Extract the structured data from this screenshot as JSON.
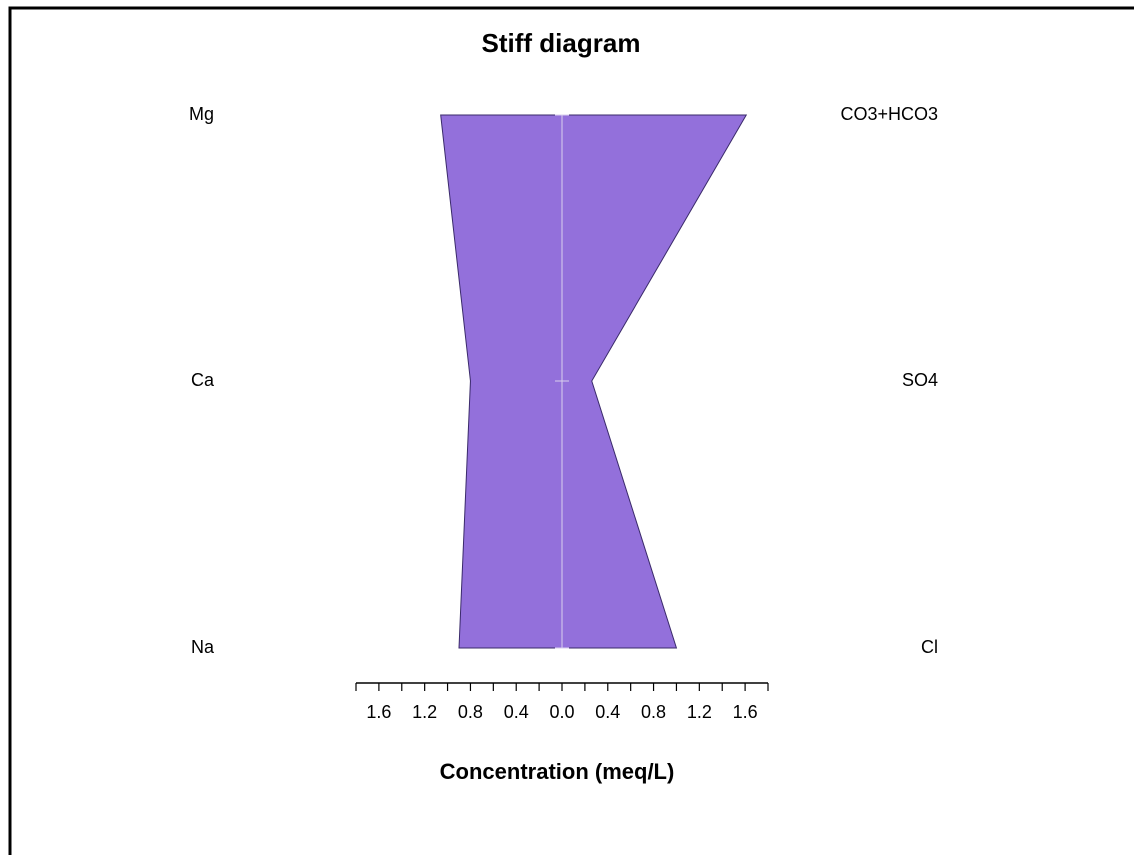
{
  "chart_data": {
    "type": "stiff",
    "title": "Stiff diagram",
    "xlabel": "Concentration (meq/L)",
    "cations": [
      "Mg",
      "Ca",
      "Na"
    ],
    "cation_values": [
      1.06,
      0.8,
      0.9
    ],
    "anions": [
      "CO3+HCO3",
      "SO4",
      "Cl"
    ],
    "anion_values": [
      1.61,
      0.26,
      1.0
    ],
    "color": "#9370db",
    "xlim": [
      -1.8,
      1.8
    ],
    "xticks": [
      {
        "value": -1.6,
        "label": "1.6"
      },
      {
        "value": -1.2,
        "label": "1.2"
      },
      {
        "value": -0.8,
        "label": "0.8"
      },
      {
        "value": -0.4,
        "label": "0.4"
      },
      {
        "value": 0,
        "label": "0.0"
      },
      0.4,
      0.8,
      1.2,
      1.6
    ],
    "xminorticks": [
      -1.8,
      -1.4,
      -1.0,
      -0.6,
      -0.2,
      0.2,
      0.6,
      1.0,
      1.4,
      1.8
    ]
  }
}
